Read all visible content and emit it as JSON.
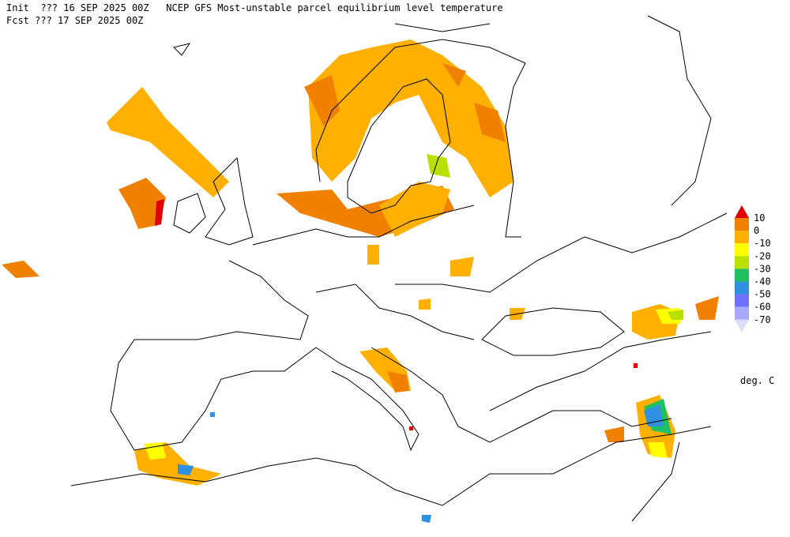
{
  "header": {
    "line1": "Init  ??? 16 SEP 2025 00Z   NCEP GFS Most-unstable parcel equilibrium level temperature",
    "line2": "Fcst ??? 17 SEP 2025 00Z"
  },
  "legend": {
    "levels": [
      10,
      0,
      -10,
      -20,
      -30,
      -40,
      -50,
      -60,
      -70
    ],
    "colors": [
      "#e00000",
      "#f08000",
      "#ffb000",
      "#ffff00",
      "#b8e000",
      "#20c060",
      "#3090e0",
      "#7070ff",
      "#a8a8ff",
      "#dcdcff"
    ],
    "unit": "deg. C"
  }
}
